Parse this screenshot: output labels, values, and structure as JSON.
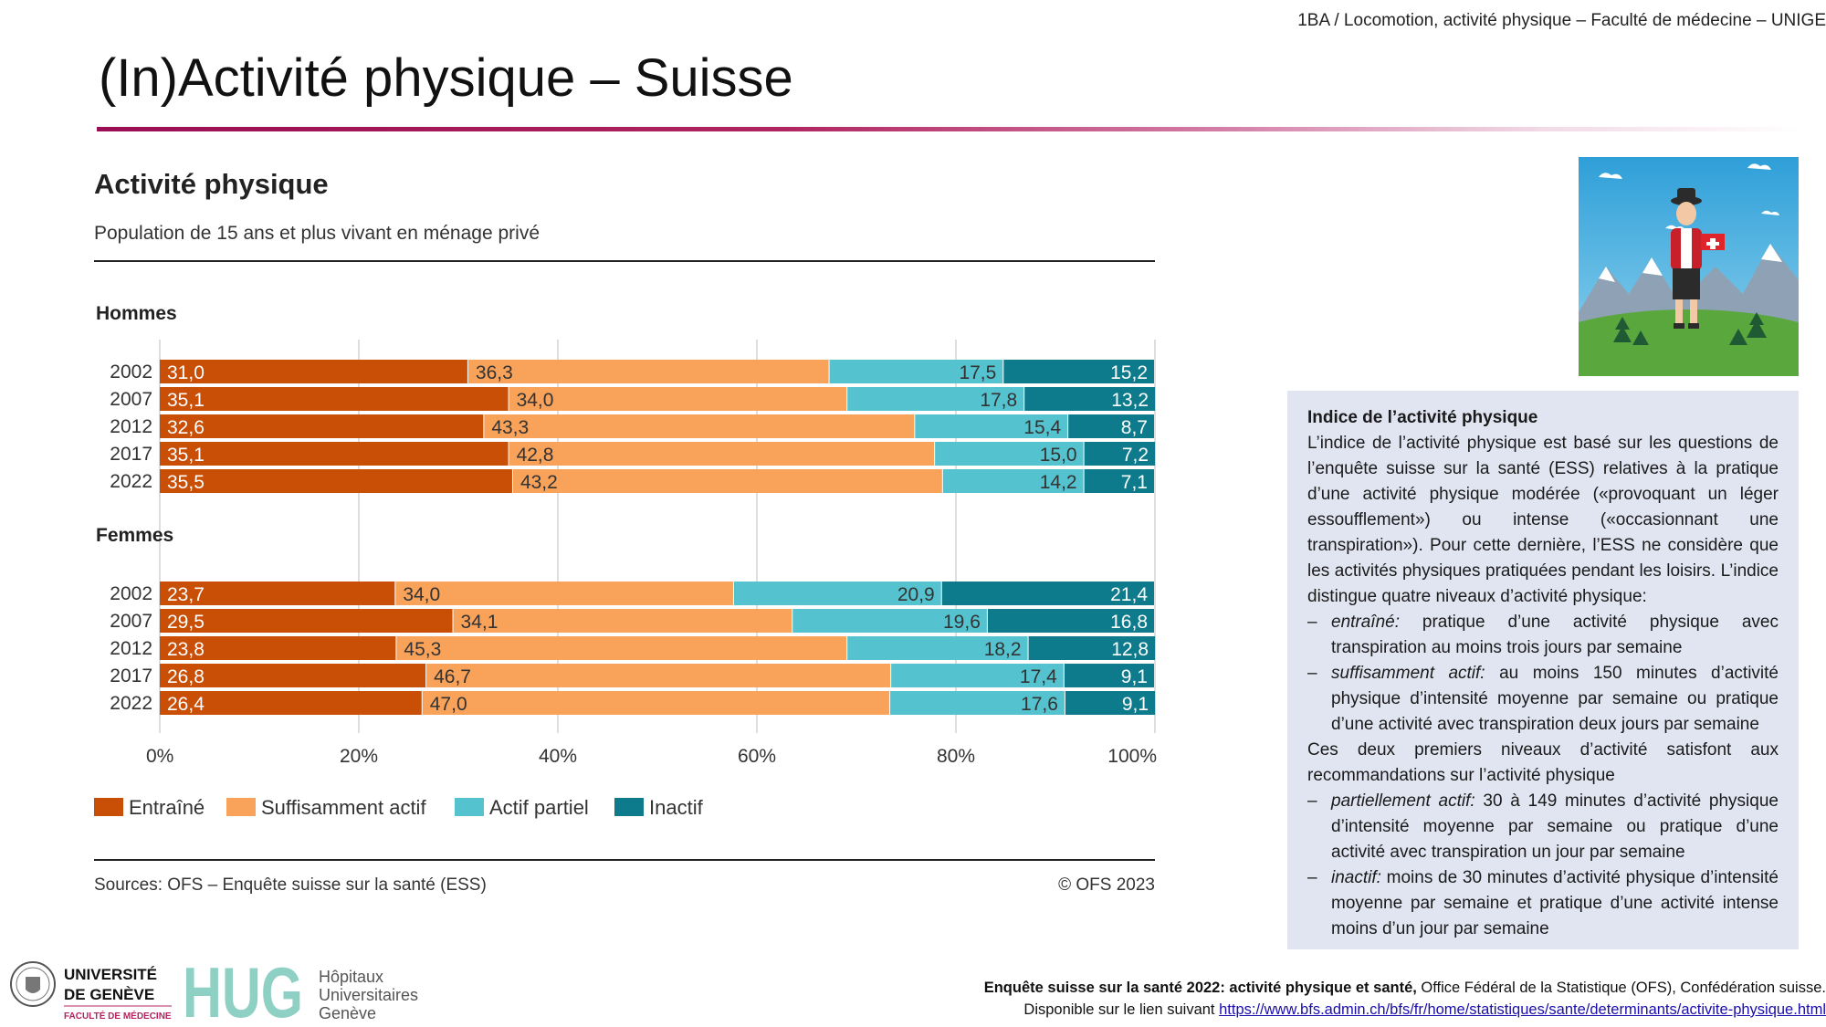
{
  "header": {
    "course": "1BA / Locomotion, activité physique – Faculté de médecine – UNIGE",
    "title": "(In)Activité physique – Suisse"
  },
  "chart_data": {
    "type": "bar",
    "orientation": "horizontal-stacked-percent",
    "title": "Activité physique",
    "subtitle": "Population de 15 ans et plus vivant en ménage privé",
    "categories": [
      "Entraîné",
      "Suffisamment actif",
      "Actif partiel",
      "Inactif"
    ],
    "colors": [
      "#c94e06",
      "#f8a25a",
      "#55c3cf",
      "#0d7b8c"
    ],
    "label_colors": [
      "#ffffff",
      "#333333",
      "#333333",
      "#ffffff"
    ],
    "xlim": [
      0,
      100
    ],
    "x_ticks": [
      "0%",
      "20%",
      "40%",
      "60%",
      "80%",
      "100%"
    ],
    "groups": [
      {
        "name": "Hommes",
        "rows": [
          {
            "year": "2002",
            "values": [
              31.0,
              36.3,
              17.5,
              15.2
            ],
            "labels": [
              "31,0",
              "36,3",
              "17,5",
              "15,2"
            ]
          },
          {
            "year": "2007",
            "values": [
              35.1,
              34.0,
              17.8,
              13.2
            ],
            "labels": [
              "35,1",
              "34,0",
              "17,8",
              "13,2"
            ]
          },
          {
            "year": "2012",
            "values": [
              32.6,
              43.3,
              15.4,
              8.7
            ],
            "labels": [
              "32,6",
              "43,3",
              "15,4",
              "8,7"
            ]
          },
          {
            "year": "2017",
            "values": [
              35.1,
              42.8,
              15.0,
              7.2
            ],
            "labels": [
              "35,1",
              "42,8",
              "15,0",
              "7,2"
            ]
          },
          {
            "year": "2022",
            "values": [
              35.5,
              43.2,
              14.2,
              7.1
            ],
            "labels": [
              "35,5",
              "43,2",
              "14,2",
              "7,1"
            ]
          }
        ]
      },
      {
        "name": "Femmes",
        "rows": [
          {
            "year": "2002",
            "values": [
              23.7,
              34.0,
              20.9,
              21.4
            ],
            "labels": [
              "23,7",
              "34,0",
              "20,9",
              "21,4"
            ]
          },
          {
            "year": "2007",
            "values": [
              29.5,
              34.1,
              19.6,
              16.8
            ],
            "labels": [
              "29,5",
              "34,1",
              "19,6",
              "16,8"
            ]
          },
          {
            "year": "2012",
            "values": [
              23.8,
              45.3,
              18.2,
              12.8
            ],
            "labels": [
              "23,8",
              "45,3",
              "18,2",
              "12,8"
            ]
          },
          {
            "year": "2017",
            "values": [
              26.8,
              46.7,
              17.4,
              9.1
            ],
            "labels": [
              "26,8",
              "46,7",
              "17,4",
              "9,1"
            ]
          },
          {
            "year": "2022",
            "values": [
              26.4,
              47.0,
              17.6,
              9.1
            ],
            "labels": [
              "26,4",
              "47,0",
              "17,6",
              "9,1"
            ]
          }
        ]
      }
    ],
    "source": "Sources: OFS – Enquête suisse sur la santé (ESS)",
    "copyright": "© OFS 2023",
    "legend_position": "bottom-left"
  },
  "info_box": {
    "title": "Indice de l’activité physique",
    "intro": "L’indice de l’activité physique est basé sur les questions de l’enquête suisse sur la santé (ESS) relatives à la pratique d’une activité physique modérée («provoquant un léger essoufflement») ou intense («occasionnant une transpiration»). Pour cette dernière, l’ESS ne considère que les activités physiques pratiquées pendant les loisirs. L’indice distingue quatre niveaux d’activité physique:",
    "items_a": [
      {
        "term": "entraîné:",
        "text": " pratique d’une activité physique avec transpiration au moins trois jours par semaine"
      },
      {
        "term": "suffisamment actif:",
        "text": " au moins 150 minutes d’activité physique d’intensité moyenne par semaine ou pratique d’une activité avec transpiration deux jours par semaine"
      }
    ],
    "middle": "Ces deux premiers niveaux d’activité satisfont aux recommandations sur l’activité physique",
    "items_b": [
      {
        "term": "partiellement actif:",
        "text": " 30 à 149 minutes d’activité physique d’intensité moyenne par semaine ou pratique d’une activité avec transpiration un jour par semaine"
      },
      {
        "term": "inactif:",
        "text": " moins de 30 minutes d’activité physique d’intensité moyenne par semaine et pratique d’une activité intense moins d’un jour par semaine"
      }
    ],
    "dash": "–"
  },
  "logos": {
    "unige_line1": "UNIVERSITÉ",
    "unige_line2": "DE GENÈVE",
    "unige_faculty": "FACULTÉ DE MÉDECINE",
    "hug_mark": "HUG",
    "hug_line1": "Hôpitaux",
    "hug_line2": "Universitaires",
    "hug_line3": "Genève"
  },
  "reference": {
    "bold": "Enquête suisse sur la santé 2022: activité physique et santé,",
    "rest": " Office Fédéral de la Statistique (OFS), Confédération suisse.",
    "line2_prefix": "Disponible sur le lien suivant ",
    "url": "https://www.bfs.admin.ch/bfs/fr/home/statistiques/sante/determinants/activite-physique.html"
  }
}
